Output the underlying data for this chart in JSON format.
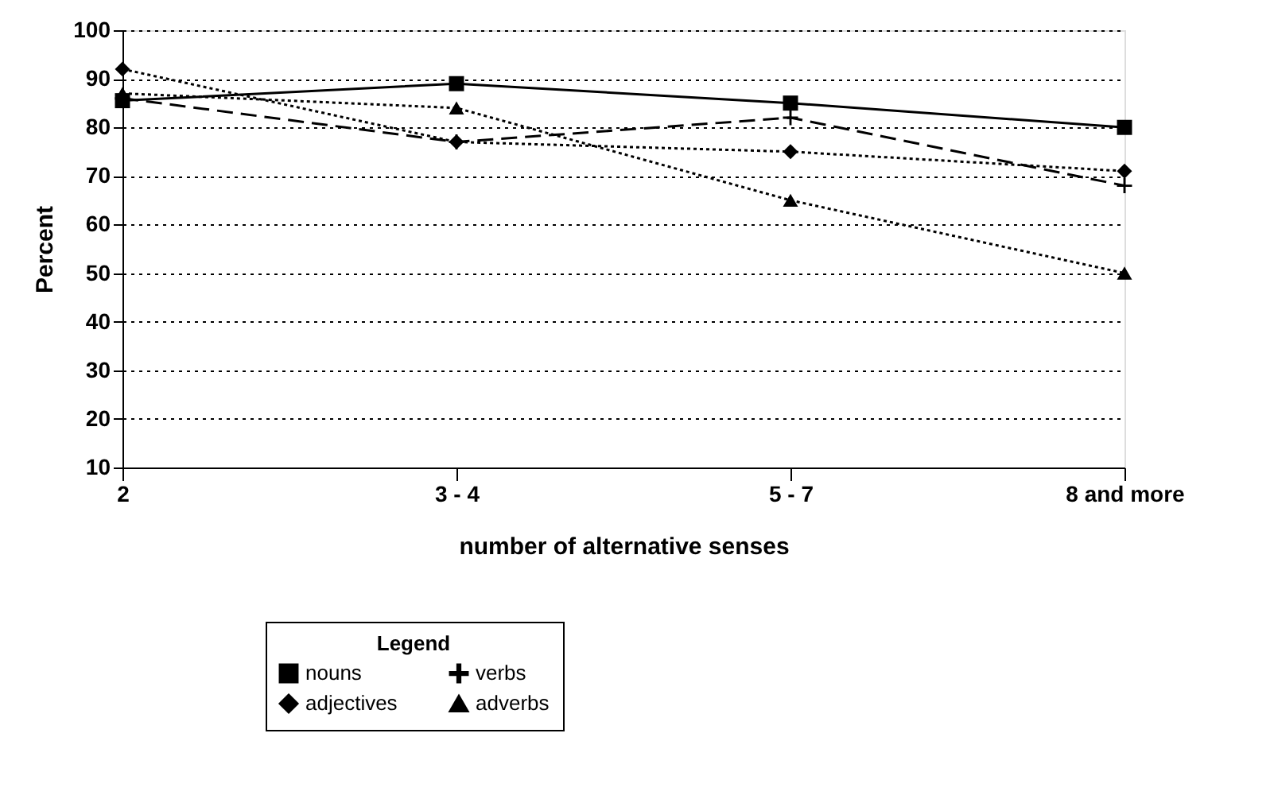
{
  "chart_data": {
    "type": "line",
    "xlabel": "number of alternative senses",
    "ylabel": "Percent",
    "legend_title": "Legend",
    "legend": "bottom",
    "grid": "y",
    "categories": [
      "2",
      "3 - 4",
      "5 - 7",
      "8 and more"
    ],
    "ylim": [
      10,
      100
    ],
    "yticks": [
      10,
      20,
      30,
      40,
      50,
      60,
      70,
      80,
      90,
      100
    ],
    "series": [
      {
        "name": "nouns",
        "color": "#000000",
        "marker": "square",
        "line_style": "solid",
        "values": [
          85.5,
          89,
          85,
          80
        ]
      },
      {
        "name": "verbs",
        "color": "#000000",
        "marker": "cross",
        "line_style": "dashed",
        "values": [
          86,
          77,
          82,
          68
        ]
      },
      {
        "name": "adjectives",
        "color": "#000000",
        "marker": "diamond",
        "line_style": "dotted",
        "values": [
          92,
          77,
          75,
          71
        ]
      },
      {
        "name": "adverbs",
        "color": "#000000",
        "marker": "triangle",
        "line_style": "dotted",
        "values": [
          87,
          84,
          65,
          50
        ]
      }
    ]
  }
}
